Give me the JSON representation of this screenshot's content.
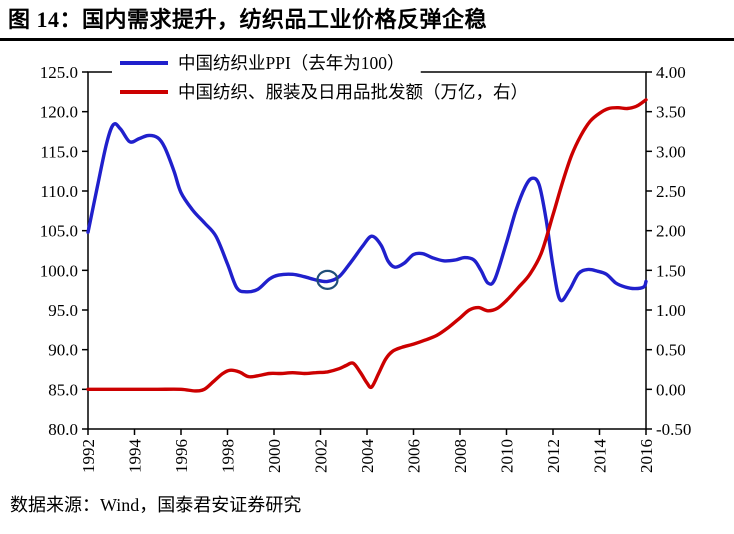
{
  "figure": {
    "title": "图 14：国内需求提升，纺织品工业价格反弹企稳",
    "source": "数据来源：Wind，国泰君安证券研究"
  },
  "chart_data": {
    "type": "line",
    "title": "图 14：国内需求提升，纺织品工业价格反弹企稳",
    "grid": false,
    "legend_position": "top-left-inside",
    "x_axis": {
      "min": 1992,
      "max": 2016,
      "tick_step": 2,
      "tick_labels": [
        "1992",
        "1994",
        "1996",
        "1998",
        "2000",
        "2002",
        "2004",
        "2006",
        "2008",
        "2010",
        "2012",
        "2014",
        "2016"
      ]
    },
    "left_axis": {
      "min": 80,
      "max": 125,
      "tick_labels": [
        "125.0",
        "120.0",
        "115.0",
        "110.0",
        "105.0",
        "100.0",
        "95.0",
        "90.0",
        "85.0",
        "80.0"
      ]
    },
    "right_axis": {
      "min": -0.5,
      "max": 4,
      "tick_labels": [
        "4.00",
        "3.50",
        "3.00",
        "2.50",
        "2.00",
        "1.50",
        "1.00",
        "0.50",
        "0.00",
        "-0.50"
      ]
    },
    "series": [
      {
        "id": "ppi",
        "name": "中国纺织业PPI（去年为100）",
        "color": "#2020CC",
        "axis": "left",
        "points": [
          [
            1992.0,
            104.8
          ],
          [
            1992.4,
            110.5
          ],
          [
            1992.8,
            116.0
          ],
          [
            1993.1,
            118.4
          ],
          [
            1993.4,
            117.8
          ],
          [
            1993.8,
            116.2
          ],
          [
            1994.2,
            116.6
          ],
          [
            1994.6,
            117.0
          ],
          [
            1995.0,
            116.7
          ],
          [
            1995.3,
            115.5
          ],
          [
            1995.7,
            112.5
          ],
          [
            1996.0,
            109.8
          ],
          [
            1996.5,
            107.6
          ],
          [
            1997.0,
            106.0
          ],
          [
            1997.5,
            104.3
          ],
          [
            1998.0,
            100.8
          ],
          [
            1998.4,
            97.8
          ],
          [
            1998.8,
            97.3
          ],
          [
            1999.3,
            97.6
          ],
          [
            1999.8,
            98.9
          ],
          [
            2000.2,
            99.4
          ],
          [
            2000.8,
            99.5
          ],
          [
            2001.3,
            99.2
          ],
          [
            2001.8,
            98.8
          ],
          [
            2002.3,
            98.6
          ],
          [
            2002.8,
            99.2
          ],
          [
            2003.3,
            101.0
          ],
          [
            2003.8,
            103.0
          ],
          [
            2004.2,
            104.3
          ],
          [
            2004.6,
            103.2
          ],
          [
            2004.9,
            101.2
          ],
          [
            2005.2,
            100.4
          ],
          [
            2005.6,
            100.9
          ],
          [
            2006.0,
            102.0
          ],
          [
            2006.4,
            102.1
          ],
          [
            2006.8,
            101.6
          ],
          [
            2007.3,
            101.2
          ],
          [
            2007.8,
            101.3
          ],
          [
            2008.2,
            101.6
          ],
          [
            2008.6,
            101.3
          ],
          [
            2008.9,
            100.0
          ],
          [
            2009.2,
            98.4
          ],
          [
            2009.5,
            98.9
          ],
          [
            2010.0,
            103.5
          ],
          [
            2010.4,
            107.5
          ],
          [
            2010.8,
            110.5
          ],
          [
            2011.1,
            111.6
          ],
          [
            2011.4,
            110.8
          ],
          [
            2011.7,
            106.5
          ],
          [
            2012.0,
            100.5
          ],
          [
            2012.3,
            96.3
          ],
          [
            2012.7,
            97.5
          ],
          [
            2013.1,
            99.6
          ],
          [
            2013.5,
            100.1
          ],
          [
            2013.9,
            99.9
          ],
          [
            2014.3,
            99.5
          ],
          [
            2014.7,
            98.4
          ],
          [
            2015.1,
            97.9
          ],
          [
            2015.5,
            97.7
          ],
          [
            2015.9,
            97.9
          ],
          [
            2016.0,
            98.6
          ]
        ]
      },
      {
        "id": "wholesale",
        "name": "中国纺织、服装及日用品批发额（万亿，右）",
        "color": "#CC0000",
        "axis": "right",
        "points": [
          [
            1992.0,
            0.0
          ],
          [
            1993.0,
            0.0
          ],
          [
            1994.0,
            0.0
          ],
          [
            1995.0,
            0.0
          ],
          [
            1996.0,
            0.0
          ],
          [
            1996.6,
            -0.02
          ],
          [
            1997.0,
            0.0
          ],
          [
            1997.4,
            0.1
          ],
          [
            1997.8,
            0.2
          ],
          [
            1998.1,
            0.24
          ],
          [
            1998.5,
            0.22
          ],
          [
            1998.9,
            0.16
          ],
          [
            1999.3,
            0.17
          ],
          [
            1999.8,
            0.2
          ],
          [
            2000.3,
            0.2
          ],
          [
            2000.8,
            0.21
          ],
          [
            2001.3,
            0.2
          ],
          [
            2001.8,
            0.21
          ],
          [
            2002.3,
            0.22
          ],
          [
            2002.8,
            0.26
          ],
          [
            2003.1,
            0.3
          ],
          [
            2003.4,
            0.33
          ],
          [
            2003.7,
            0.22
          ],
          [
            2004.0,
            0.08
          ],
          [
            2004.2,
            0.03
          ],
          [
            2004.5,
            0.2
          ],
          [
            2004.8,
            0.38
          ],
          [
            2005.1,
            0.48
          ],
          [
            2005.5,
            0.53
          ],
          [
            2006.0,
            0.57
          ],
          [
            2006.5,
            0.62
          ],
          [
            2007.0,
            0.68
          ],
          [
            2007.5,
            0.78
          ],
          [
            2008.0,
            0.9
          ],
          [
            2008.4,
            1.0
          ],
          [
            2008.8,
            1.03
          ],
          [
            2009.2,
            0.99
          ],
          [
            2009.6,
            1.02
          ],
          [
            2010.0,
            1.12
          ],
          [
            2010.5,
            1.28
          ],
          [
            2011.0,
            1.45
          ],
          [
            2011.5,
            1.72
          ],
          [
            2012.0,
            2.2
          ],
          [
            2012.4,
            2.6
          ],
          [
            2012.8,
            2.95
          ],
          [
            2013.2,
            3.2
          ],
          [
            2013.6,
            3.38
          ],
          [
            2014.0,
            3.48
          ],
          [
            2014.4,
            3.54
          ],
          [
            2014.8,
            3.55
          ],
          [
            2015.2,
            3.54
          ],
          [
            2015.6,
            3.57
          ],
          [
            2016.0,
            3.65
          ]
        ]
      }
    ],
    "annotation": {
      "shape": "ellipse",
      "x": 2002.3,
      "y": 98.8,
      "axis": "left",
      "color": "#1F4E79"
    }
  }
}
